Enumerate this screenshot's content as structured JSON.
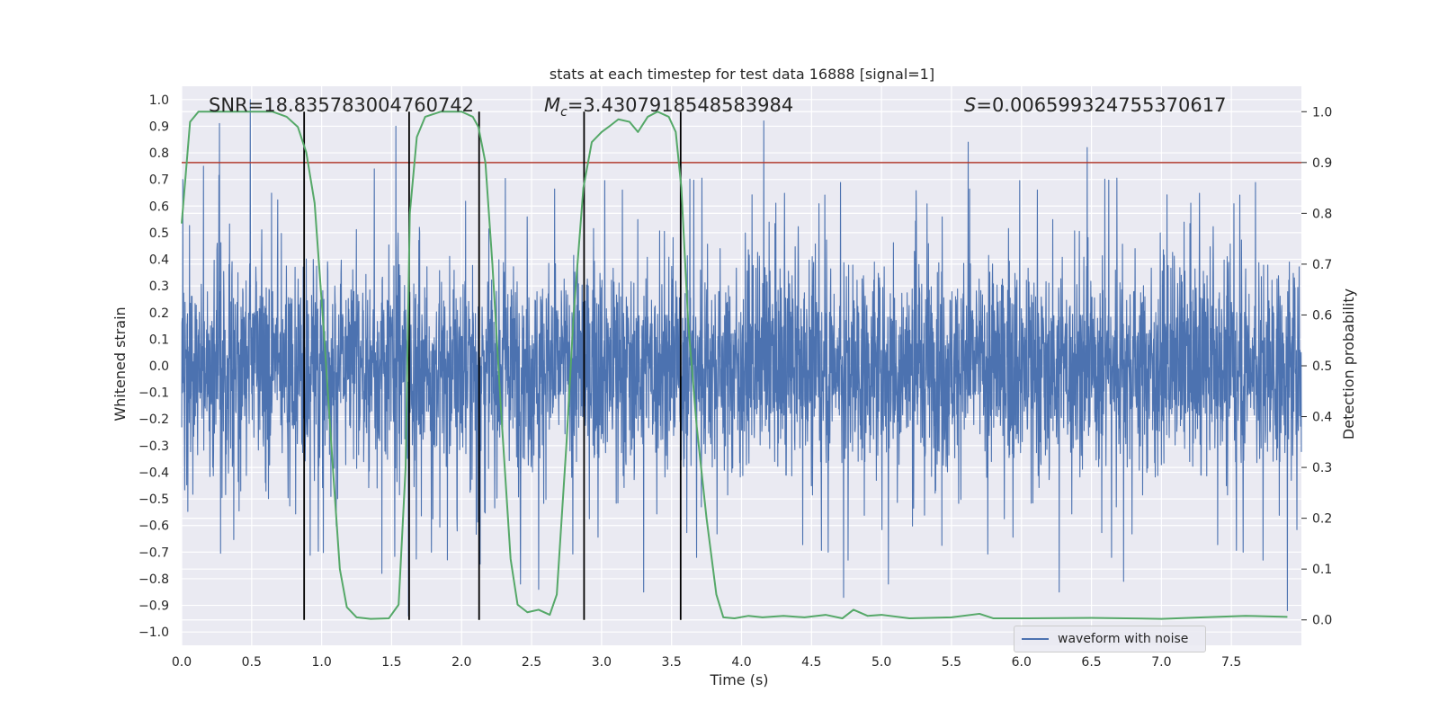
{
  "chart_data": {
    "type": "line",
    "title": "stats at each timestep for test data 16888 [signal=1]",
    "xlabel": "Time (s)",
    "ylabel_left": "Whitened strain",
    "ylabel_right": "Detection probability",
    "xlim": [
      0.0,
      8.0
    ],
    "ylim_left": [
      -1.05,
      1.05
    ],
    "ylim_right": [
      -0.05,
      1.05
    ],
    "x_ticks": [
      "0.0",
      "0.5",
      "1.0",
      "1.5",
      "2.0",
      "2.5",
      "3.0",
      "3.5",
      "4.0",
      "4.5",
      "5.0",
      "5.5",
      "6.0",
      "6.5",
      "7.0",
      "7.5"
    ],
    "y_ticks_left": [
      "1.0",
      "0.9",
      "0.8",
      "0.7",
      "0.6",
      "0.5",
      "0.4",
      "0.3",
      "0.2",
      "0.1",
      "0.0",
      "−0.1",
      "−0.2",
      "−0.3",
      "−0.4",
      "−0.5",
      "−0.6",
      "−0.7",
      "−0.8",
      "−0.9",
      "−1.0"
    ],
    "y_ticks_right": [
      "1.0",
      "0.9",
      "0.8",
      "0.7",
      "0.6",
      "0.5",
      "0.4",
      "0.3",
      "0.2",
      "0.1",
      "0.0"
    ],
    "grid": true,
    "legend_position": "lower-right",
    "annotations": {
      "snr": "SNR=18.835783004760742",
      "mc": "=3.4307918548583984",
      "s": "=0.006599324755370617"
    },
    "threshold": 0.9,
    "vertical_lines_x": [
      0.875,
      1.625,
      2.125,
      2.875,
      3.565
    ],
    "series": [
      {
        "name": "waveform with noise",
        "color": "#4c72b0",
        "axis": "left",
        "kind": "dense noise",
        "x_range": [
          0.0,
          8.0
        ],
        "envelope_min": -0.95,
        "envelope_max": 1.0,
        "spikes": [
          [
            0.27,
            0.91
          ],
          [
            0.49,
            1.0
          ],
          [
            1.53,
            0.9
          ],
          [
            4.16,
            0.92
          ],
          [
            5.62,
            0.84
          ],
          [
            6.47,
            0.82
          ],
          [
            1.43,
            -0.78
          ],
          [
            1.62,
            -0.94
          ],
          [
            2.42,
            -0.82
          ],
          [
            2.55,
            -0.84
          ],
          [
            3.3,
            -0.85
          ],
          [
            4.73,
            -0.87
          ],
          [
            5.05,
            -0.82
          ],
          [
            6.27,
            -0.85
          ],
          [
            6.73,
            -0.81
          ],
          [
            7.9,
            -0.92
          ]
        ]
      },
      {
        "name": "",
        "color": "#55a868",
        "axis": "right",
        "x": [
          0.0,
          0.06,
          0.12,
          0.25,
          0.4,
          0.55,
          0.65,
          0.75,
          0.83,
          0.89,
          0.95,
          1.02,
          1.08,
          1.13,
          1.18,
          1.25,
          1.35,
          1.48,
          1.55,
          1.6,
          1.63,
          1.68,
          1.74,
          1.85,
          2.0,
          2.08,
          2.12,
          2.17,
          2.22,
          2.28,
          2.35,
          2.4,
          2.47,
          2.55,
          2.63,
          2.68,
          2.75,
          2.8,
          2.87,
          2.93,
          3.0,
          3.05,
          3.12,
          3.2,
          3.26,
          3.33,
          3.4,
          3.48,
          3.53,
          3.57,
          3.62,
          3.68,
          3.75,
          3.82,
          3.87,
          3.95,
          4.05,
          4.15,
          4.3,
          4.45,
          4.6,
          4.72,
          4.8,
          4.9,
          5.0,
          5.2,
          5.5,
          5.7,
          5.8,
          6.0,
          6.5,
          7.0,
          7.3,
          7.6,
          7.9
        ],
        "y": [
          0.78,
          0.98,
          1.0,
          1.0,
          1.0,
          1.0,
          1.0,
          0.99,
          0.97,
          0.92,
          0.82,
          0.55,
          0.3,
          0.1,
          0.025,
          0.005,
          0.002,
          0.003,
          0.03,
          0.3,
          0.8,
          0.95,
          0.99,
          1.0,
          1.0,
          0.99,
          0.97,
          0.9,
          0.7,
          0.42,
          0.12,
          0.03,
          0.015,
          0.02,
          0.01,
          0.05,
          0.35,
          0.6,
          0.85,
          0.94,
          0.96,
          0.97,
          0.985,
          0.98,
          0.96,
          0.99,
          1.0,
          0.99,
          0.96,
          0.85,
          0.58,
          0.38,
          0.2,
          0.05,
          0.005,
          0.003,
          0.008,
          0.005,
          0.008,
          0.005,
          0.01,
          0.003,
          0.02,
          0.008,
          0.01,
          0.003,
          0.005,
          0.012,
          0.003,
          0.003,
          0.004,
          0.002,
          0.005,
          0.008,
          0.006
        ]
      }
    ]
  }
}
